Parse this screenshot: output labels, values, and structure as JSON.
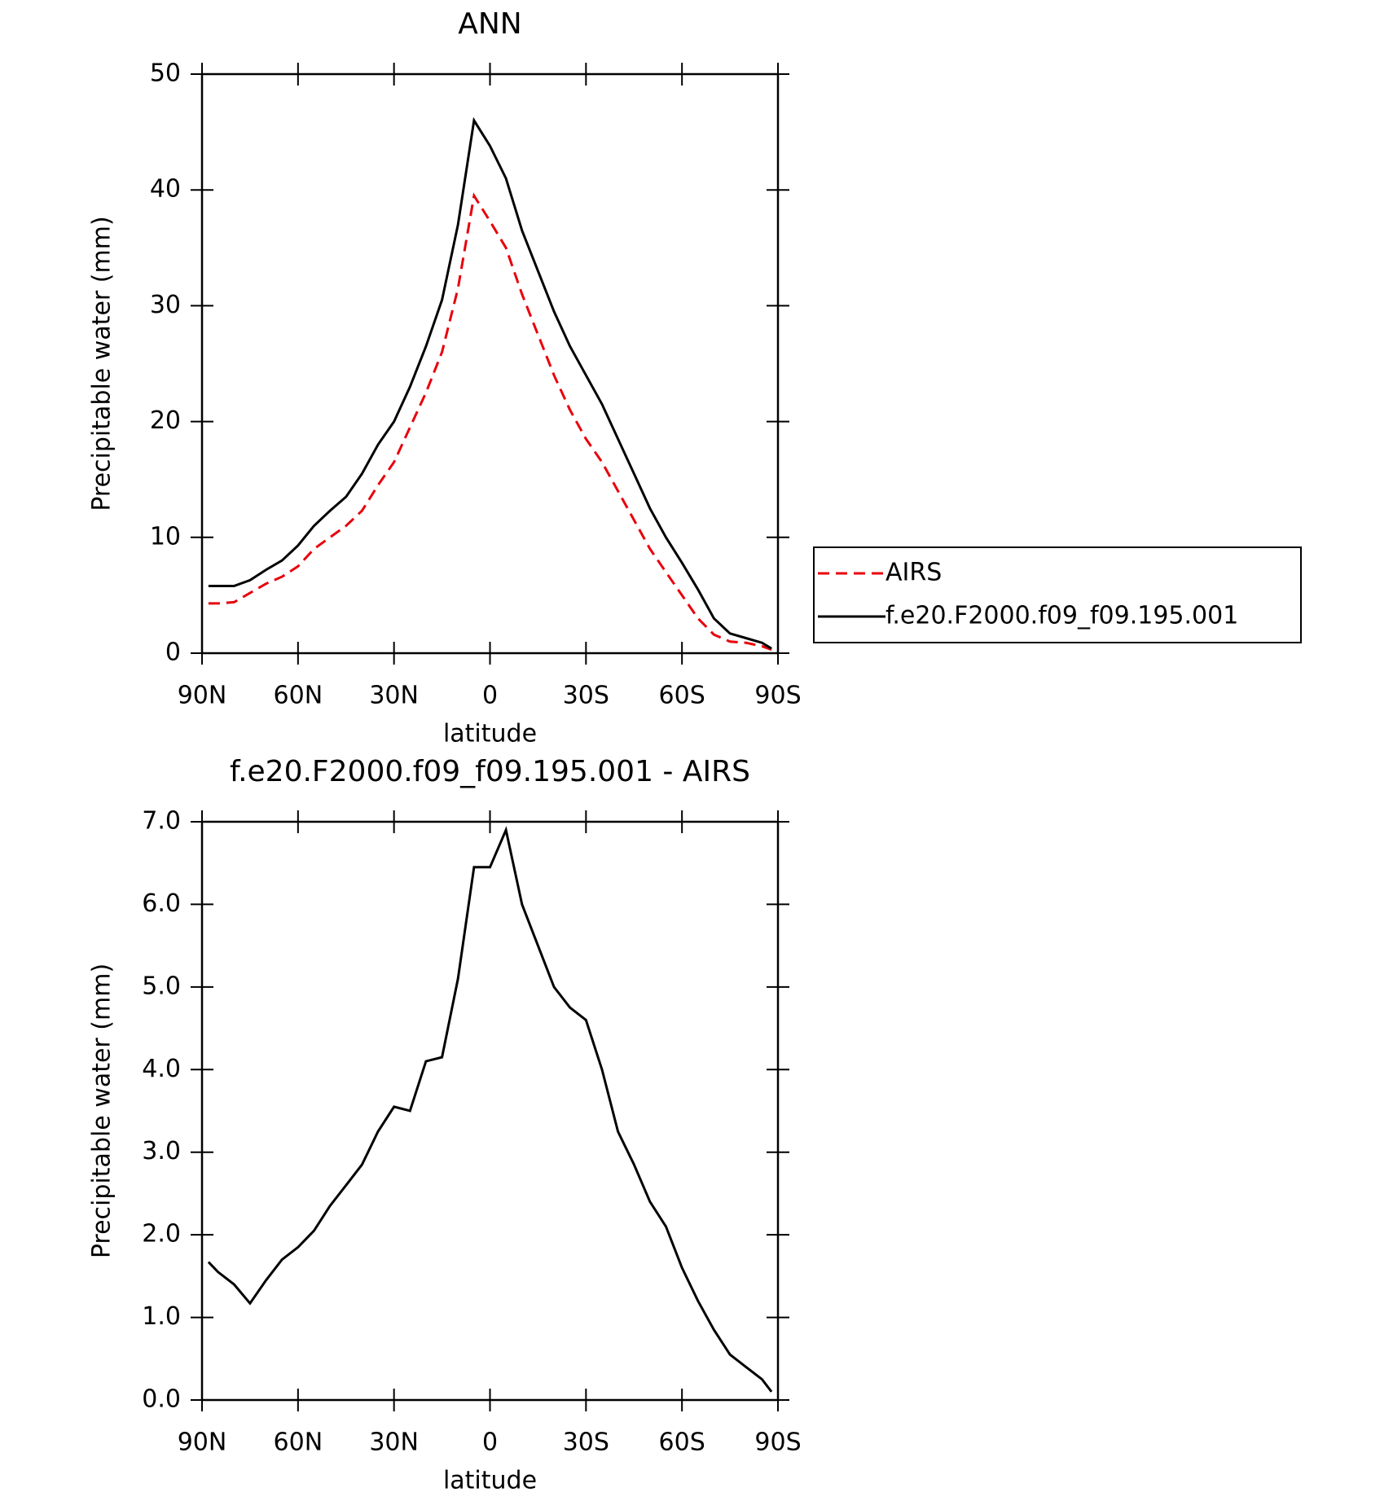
{
  "chart_data": [
    {
      "type": "line",
      "title": "ANN",
      "xlabel": "latitude",
      "ylabel": "Precipitable water (mm)",
      "x": [
        88,
        85,
        80,
        75,
        70,
        65,
        60,
        55,
        50,
        45,
        40,
        35,
        30,
        25,
        20,
        15,
        10,
        5,
        0,
        -5,
        -10,
        -15,
        -20,
        -25,
        -30,
        -35,
        -40,
        -45,
        -50,
        -55,
        -60,
        -65,
        -70,
        -75,
        -80,
        -85,
        -88
      ],
      "xlim": [
        90,
        -90
      ],
      "xticks": [
        {
          "value": 90,
          "label": "90N"
        },
        {
          "value": 60,
          "label": "60N"
        },
        {
          "value": 30,
          "label": "30N"
        },
        0,
        {
          "value": -30,
          "label": "30S"
        },
        {
          "value": -60,
          "label": "60S"
        },
        {
          "value": -90,
          "label": "90S"
        }
      ],
      "ylim": [
        0,
        50
      ],
      "yticks": [
        0,
        10,
        20,
        30,
        40,
        50
      ],
      "legend": "right",
      "series": [
        {
          "name": "AIRS",
          "color": "#e8000b",
          "dash": true,
          "values": [
            4.3,
            4.3,
            4.4,
            5.2,
            6.0,
            6.6,
            7.5,
            9.0,
            10.0,
            11.0,
            12.3,
            14.5,
            16.5,
            19.5,
            22.5,
            26.0,
            31.5,
            39.5,
            37.3,
            35.0,
            31.0,
            27.5,
            24.0,
            21.0,
            18.5,
            16.5,
            14.0,
            11.5,
            9.0,
            7.0,
            5.0,
            3.0,
            1.6,
            1.0,
            0.9,
            0.6,
            0.3
          ]
        },
        {
          "name": "f.e20.F2000.f09_f09.195.001",
          "color": "#000000",
          "dash": false,
          "values": [
            5.8,
            5.8,
            5.8,
            6.3,
            7.2,
            8.0,
            9.3,
            11.0,
            12.3,
            13.5,
            15.5,
            18.0,
            20.0,
            23.0,
            26.5,
            30.5,
            37.0,
            46.0,
            43.8,
            41.0,
            36.5,
            33.0,
            29.5,
            26.5,
            24.0,
            21.5,
            18.5,
            15.5,
            12.5,
            10.0,
            7.8,
            5.5,
            3.0,
            1.7,
            1.3,
            0.9,
            0.4
          ]
        }
      ]
    },
    {
      "type": "line",
      "title": "f.e20.F2000.f09_f09.195.001 - AIRS",
      "xlabel": "latitude",
      "ylabel": "Precipitable water (mm)",
      "x": [
        88,
        85,
        80,
        75,
        70,
        65,
        60,
        55,
        50,
        45,
        40,
        35,
        30,
        25,
        20,
        15,
        10,
        5,
        0,
        -5,
        -10,
        -15,
        -20,
        -25,
        -30,
        -35,
        -40,
        -45,
        -50,
        -55,
        -60,
        -65,
        -70,
        -75,
        -80,
        -85,
        -88
      ],
      "xlim": [
        90,
        -90
      ],
      "xticks": [
        {
          "value": 90,
          "label": "90N"
        },
        {
          "value": 60,
          "label": "60N"
        },
        {
          "value": 30,
          "label": "30N"
        },
        0,
        {
          "value": -30,
          "label": "30S"
        },
        {
          "value": -60,
          "label": "60S"
        },
        {
          "value": -90,
          "label": "90S"
        }
      ],
      "ylim": [
        0,
        7
      ],
      "yticks": [
        {
          "value": 0,
          "label": "0.0"
        },
        {
          "value": 1,
          "label": "1.0"
        },
        {
          "value": 2,
          "label": "2.0"
        },
        {
          "value": 3,
          "label": "3.0"
        },
        {
          "value": 4,
          "label": "4.0"
        },
        {
          "value": 5,
          "label": "5.0"
        },
        {
          "value": 6,
          "label": "6.0"
        },
        {
          "value": 7,
          "label": "7.0"
        }
      ],
      "color": "#000000",
      "values": [
        1.67,
        1.55,
        1.4,
        1.17,
        1.45,
        1.7,
        1.85,
        2.05,
        2.35,
        2.6,
        2.85,
        3.25,
        3.55,
        3.5,
        4.1,
        4.15,
        5.1,
        6.45,
        6.45,
        6.9,
        6.0,
        5.5,
        5.0,
        4.75,
        4.6,
        4.0,
        3.25,
        2.85,
        2.4,
        2.1,
        1.6,
        1.2,
        0.85,
        0.55,
        0.4,
        0.25,
        0.1
      ]
    }
  ]
}
